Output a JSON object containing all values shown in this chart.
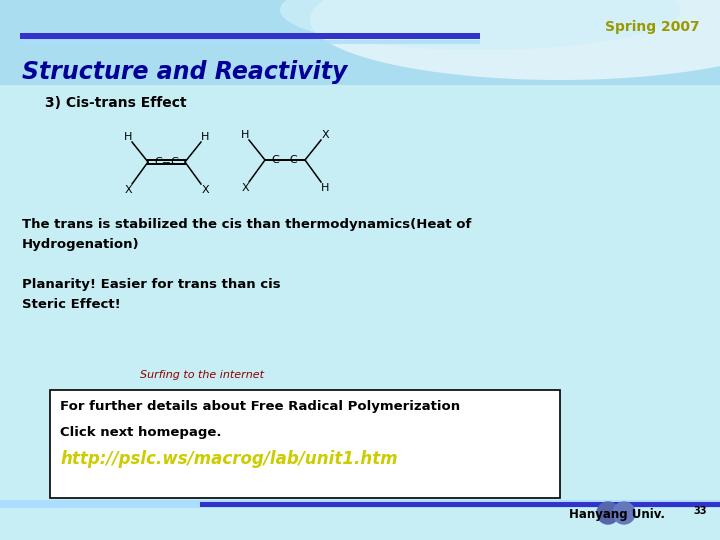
{
  "title": "Structure and Reactivity",
  "spring_label": "Spring 2007",
  "section": "3) Cis-trans Effect",
  "text1": "The trans is stabilized the cis than thermodynamics(Heat of\nHydrogenation)",
  "text2": "Planarity! Easier for trans than cis\nSteric Effect!",
  "surfing_label": "Surfing to the internet",
  "box_line1": "For further details about Free Radical Polymerization",
  "box_line2": "Click next homepage.",
  "link": "http://pslc.ws/macrog/lab/unit1.htm",
  "footer": "Hanyang Univ.",
  "page_num": "33",
  "bg_color": "#c8eef5",
  "title_color": "#000099",
  "spring_color": "#999900",
  "section_color": "#000000",
  "text_color": "#000000",
  "surfing_color": "#8B0000",
  "link_color": "#cccc00",
  "box_bg": "#ffffff",
  "header_stripe_blue": "#3333cc",
  "header_stripe_light": "#aaddff"
}
